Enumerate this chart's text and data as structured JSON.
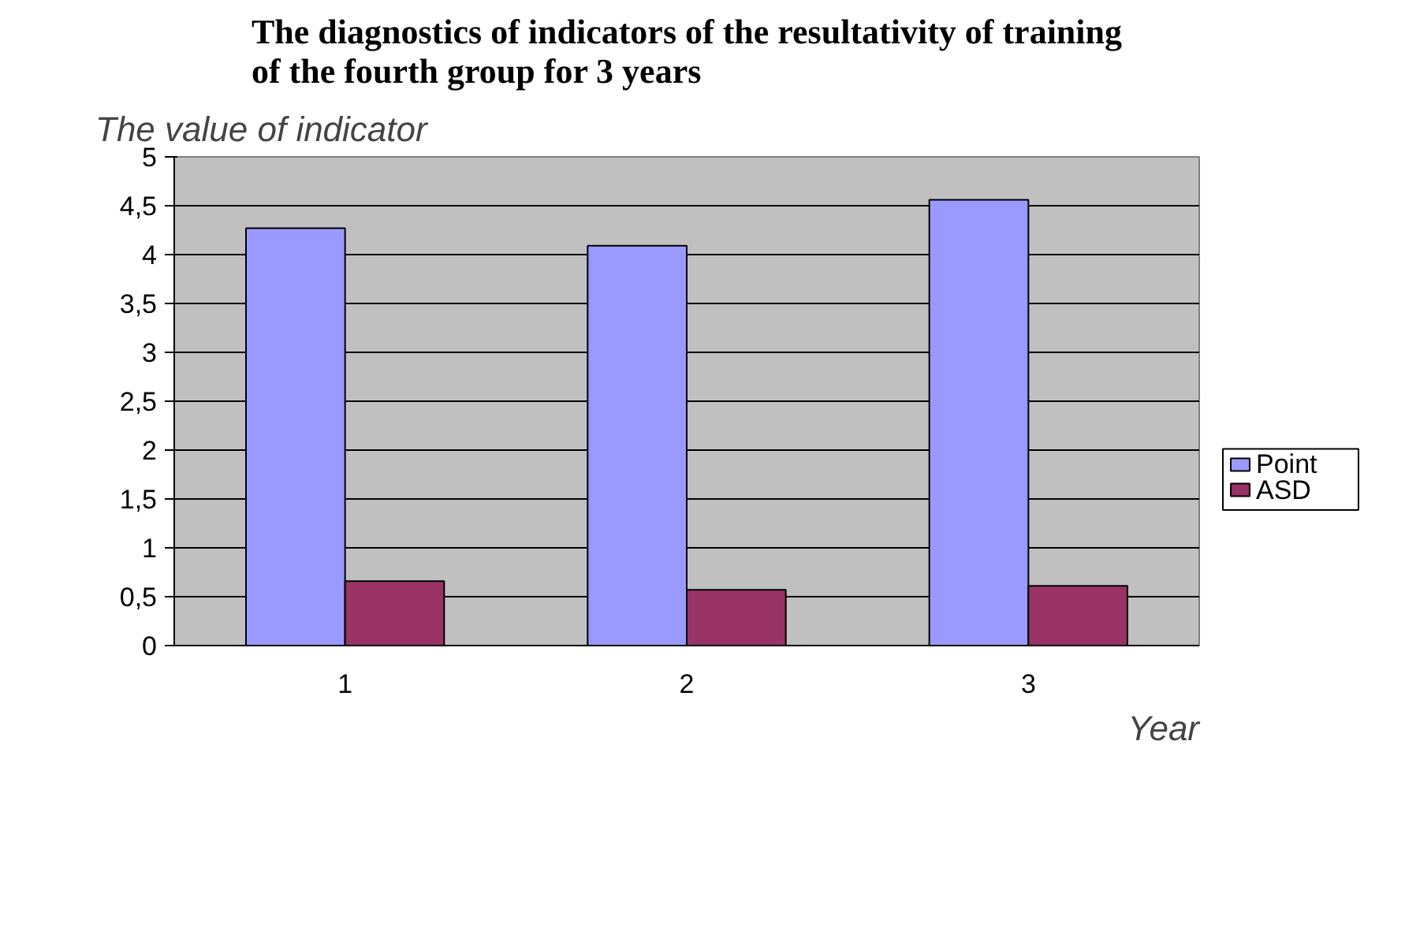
{
  "chart_data": {
    "type": "bar",
    "title": "The diagnostics of indicators of the resultativity of training of the fourth group for 3 years",
    "ylabel": "The value of indicator",
    "xlabel": "Year",
    "categories": [
      "1",
      "2",
      "3"
    ],
    "series": [
      {
        "name": "Point",
        "color": "#9999ff",
        "values": [
          4.27,
          4.09,
          4.56
        ]
      },
      {
        "name": "ASD",
        "color": "#993366",
        "values": [
          0.66,
          0.57,
          0.61
        ]
      }
    ],
    "ylim": [
      0,
      5
    ],
    "yticks": [
      0,
      {
        "value": 0.5,
        "label": "0,5"
      },
      1,
      {
        "value": 1.5,
        "label": "1,5"
      },
      2,
      {
        "value": 2.5,
        "label": "2,5"
      },
      3,
      {
        "value": 3.5,
        "label": "3,5"
      },
      4,
      {
        "value": 4.5,
        "label": "4,5"
      },
      5
    ],
    "grid": "y",
    "legend": "right"
  }
}
